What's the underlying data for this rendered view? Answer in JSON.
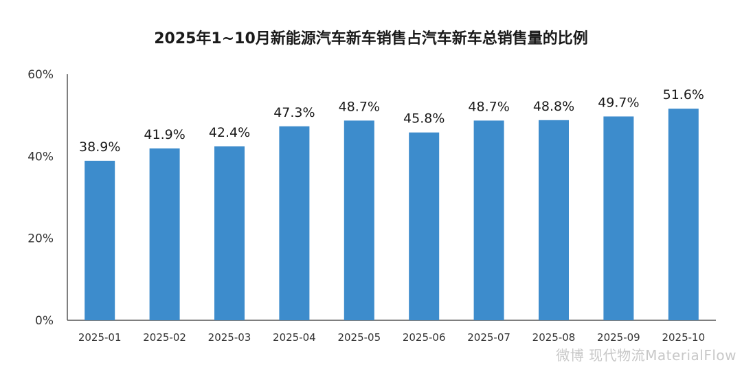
{
  "chart_data": {
    "type": "bar",
    "title": "2025年1~10月新能源汽车新车销售占汽车新车总销售量的比例",
    "categories": [
      "2025-01",
      "2025-02",
      "2025-03",
      "2025-04",
      "2025-05",
      "2025-06",
      "2025-07",
      "2025-08",
      "2025-09",
      "2025-10"
    ],
    "values": [
      38.9,
      41.9,
      42.4,
      47.3,
      48.7,
      45.8,
      48.7,
      48.8,
      49.7,
      51.6
    ],
    "data_labels": [
      "38.9%",
      "41.9%",
      "42.4%",
      "47.3%",
      "48.7%",
      "45.8%",
      "48.7%",
      "48.8%",
      "49.7%",
      "51.6%"
    ],
    "xlabel": "",
    "ylabel": "",
    "ylim": [
      0,
      60
    ],
    "yticks": [
      0,
      20,
      40,
      60
    ],
    "ytick_labels": [
      "0%",
      "20%",
      "40%",
      "60%"
    ],
    "grid": false,
    "bar_color": "#3d8ccc",
    "axis_color": "#555555"
  },
  "watermark": "微博 现代物流MaterialFlow"
}
